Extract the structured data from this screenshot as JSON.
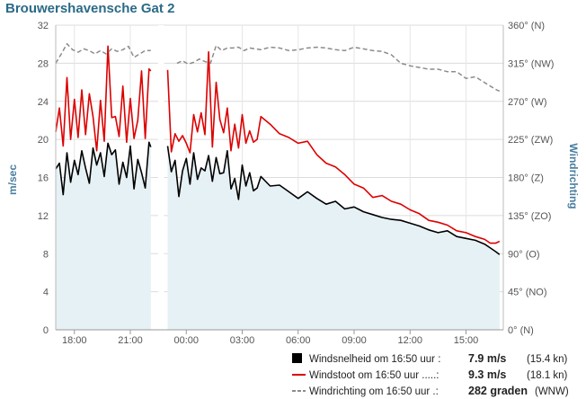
{
  "chart_data": {
    "type": "line",
    "title": "Brouwershavensche Gat 2",
    "ylabel_left": "m/sec",
    "ylabel_right": "Windrichting",
    "ylim_left": [
      0,
      32
    ],
    "yticks_left": [
      "0",
      "4",
      "8",
      "12",
      "16",
      "20",
      "24",
      "28",
      "32"
    ],
    "ylim_right": [
      0,
      360
    ],
    "yticks_right": [
      "0° (N)",
      "45° (NO)",
      "90° (O)",
      "135° (ZO)",
      "180° (Z)",
      "225° (ZW)",
      "270° (W)",
      "315° (NW)",
      "360° (N)"
    ],
    "xlim_hours": [
      17.0,
      41.0
    ],
    "xticks": [
      "18:00",
      "21:00",
      "00:00",
      "03:00",
      "06:00",
      "09:00",
      "12:00",
      "15:00"
    ],
    "grid": true,
    "gap_hours": [
      22.2,
      23.0
    ],
    "series": [
      {
        "name": "Windsnelheid",
        "color": "#000000",
        "style": "solid-with-fill",
        "x": [
          17.0,
          17.2,
          17.4,
          17.6,
          17.8,
          18.0,
          18.2,
          18.4,
          18.6,
          18.8,
          19.0,
          19.2,
          19.4,
          19.6,
          19.8,
          20.0,
          20.2,
          20.4,
          20.6,
          20.8,
          21.0,
          21.2,
          21.4,
          21.6,
          21.8,
          22.0,
          22.1,
          23.0,
          23.2,
          23.4,
          23.6,
          23.8,
          24.0,
          24.2,
          24.4,
          24.6,
          24.8,
          25.0,
          25.2,
          25.4,
          25.6,
          25.8,
          26.0,
          26.2,
          26.4,
          26.6,
          26.8,
          27.0,
          27.2,
          27.4,
          27.6,
          27.8,
          28.0,
          28.5,
          29.0,
          29.5,
          30.0,
          30.5,
          31.0,
          31.5,
          32.0,
          32.5,
          33.0,
          33.5,
          34.0,
          34.5,
          35.0,
          35.5,
          36.0,
          36.5,
          37.0,
          37.5,
          38.0,
          38.5,
          39.0,
          39.5,
          40.0,
          40.3,
          40.6,
          40.8
        ],
        "values": [
          16.9,
          17.5,
          14.2,
          18.6,
          15.5,
          17.8,
          16.3,
          18.8,
          17.0,
          15.4,
          19.1,
          17.3,
          18.6,
          16.1,
          19.6,
          18.4,
          18.9,
          15.3,
          17.6,
          16.0,
          19.3,
          14.8,
          17.9,
          16.5,
          14.9,
          19.7,
          19.2,
          19.3,
          16.6,
          17.8,
          14.0,
          16.7,
          18.0,
          15.3,
          18.6,
          15.8,
          17.0,
          16.7,
          18.3,
          15.6,
          18.1,
          16.4,
          16.5,
          18.8,
          14.8,
          15.9,
          13.7,
          17.3,
          15.1,
          16.5,
          14.6,
          14.9,
          16.1,
          15.1,
          15.2,
          14.5,
          13.8,
          14.5,
          13.8,
          13.2,
          13.5,
          12.7,
          12.9,
          12.4,
          12.1,
          11.8,
          11.6,
          11.5,
          11.2,
          10.9,
          10.5,
          10.2,
          10.4,
          9.8,
          9.6,
          9.4,
          9.0,
          8.6,
          8.2,
          7.9
        ]
      },
      {
        "name": "Windstoot",
        "color": "#dd0000",
        "style": "solid",
        "x": [
          17.0,
          17.2,
          17.4,
          17.6,
          17.8,
          18.0,
          18.2,
          18.4,
          18.6,
          18.8,
          19.0,
          19.2,
          19.4,
          19.6,
          19.8,
          20.0,
          20.2,
          20.4,
          20.6,
          20.8,
          21.0,
          21.2,
          21.4,
          21.6,
          21.8,
          22.0,
          22.1,
          23.0,
          23.2,
          23.4,
          23.6,
          23.8,
          24.0,
          24.2,
          24.4,
          24.6,
          24.8,
          25.0,
          25.2,
          25.4,
          25.6,
          25.8,
          26.0,
          26.2,
          26.4,
          26.6,
          26.8,
          27.0,
          27.2,
          27.4,
          27.6,
          27.8,
          28.0,
          28.5,
          29.0,
          29.5,
          30.0,
          30.5,
          31.0,
          31.5,
          32.0,
          32.5,
          33.0,
          33.5,
          34.0,
          34.5,
          35.0,
          35.5,
          36.0,
          36.5,
          37.0,
          37.5,
          38.0,
          38.5,
          39.0,
          39.5,
          40.0,
          40.3,
          40.6,
          40.8
        ],
        "values": [
          20.8,
          23.3,
          19.3,
          26.5,
          20.0,
          24.2,
          20.2,
          25.2,
          20.5,
          24.8,
          22.4,
          18.8,
          24.1,
          19.8,
          29.8,
          22.3,
          22.4,
          20.3,
          25.6,
          19.7,
          24.3,
          20.1,
          22.0,
          27.2,
          20.1,
          27.4,
          27.2,
          27.3,
          18.7,
          20.6,
          19.8,
          20.4,
          19.6,
          18.6,
          22.6,
          20.8,
          22.8,
          20.5,
          29.2,
          19.2,
          26.0,
          22.1,
          20.7,
          23.3,
          18.8,
          21.6,
          19.1,
          22.6,
          19.6,
          20.9,
          19.7,
          20.0,
          22.4,
          21.6,
          20.6,
          20.2,
          19.6,
          19.8,
          18.4,
          17.5,
          17.1,
          16.3,
          15.3,
          14.9,
          13.9,
          14.1,
          13.5,
          13.2,
          12.6,
          12.2,
          11.5,
          11.3,
          11.0,
          10.4,
          10.2,
          9.8,
          9.5,
          9.1,
          9.1,
          9.3
        ]
      },
      {
        "name": "Windrichting",
        "color": "#8c8c8c",
        "style": "dashed",
        "axis": "right",
        "x": [
          17.0,
          17.3,
          17.6,
          17.9,
          18.2,
          18.5,
          18.8,
          19.1,
          19.4,
          19.7,
          20.0,
          20.3,
          20.6,
          20.9,
          21.2,
          21.5,
          21.8,
          22.1,
          23.5,
          23.8,
          24.1,
          24.4,
          24.7,
          25.0,
          25.3,
          25.6,
          25.9,
          26.2,
          26.5,
          26.8,
          27.1,
          27.4,
          27.7,
          28.0,
          28.5,
          29.0,
          29.5,
          30.0,
          30.5,
          31.0,
          31.5,
          32.0,
          32.5,
          33.0,
          33.5,
          34.0,
          34.5,
          35.0,
          35.5,
          36.0,
          36.5,
          37.0,
          37.5,
          38.0,
          38.5,
          39.0,
          39.5,
          40.0,
          40.3,
          40.6,
          40.8
        ],
        "values": [
          315,
          326,
          338,
          331,
          328,
          332,
          330,
          326,
          330,
          326,
          332,
          329,
          331,
          335,
          322,
          326,
          330,
          330,
          315,
          318,
          314,
          316,
          320,
          317,
          315,
          336,
          330,
          333,
          333,
          334,
          330,
          333,
          332,
          331,
          334,
          333,
          330,
          331,
          333,
          334,
          333,
          331,
          330,
          334,
          332,
          330,
          329,
          325,
          315,
          312,
          310,
          308,
          308,
          305,
          305,
          297,
          299,
          292,
          288,
          284,
          282
        ]
      }
    ]
  },
  "legend": {
    "items": [
      {
        "label": "Windsnelheid om 16:50 uur :",
        "value": "7.9 m/s",
        "extra": "(15.4 kn)"
      },
      {
        "label": "Windstoot om 16:50 uur .....:",
        "value": "9.3 m/s",
        "extra": "(18.1 kn)"
      },
      {
        "label": "Windrichting om 16:50 uur .:",
        "value": "282 graden",
        "extra": "(WNW)"
      }
    ]
  }
}
